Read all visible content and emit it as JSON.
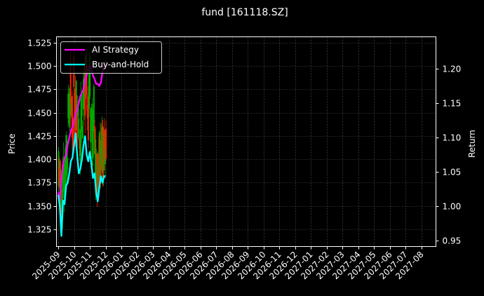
{
  "chart_data": {
    "type": "line",
    "title": "fund [161118.SZ]",
    "xlabel": "",
    "ylabel": "Price",
    "ylabel_right": "Return",
    "grid": true,
    "legend_position": "upper left",
    "ylim": [
      1.308,
      1.533
    ],
    "ylim_right": [
      0.942,
      1.248
    ],
    "yticks": [
      "1.325",
      "1.350",
      "1.375",
      "1.400",
      "1.425",
      "1.450",
      "1.475",
      "1.500",
      "1.525"
    ],
    "yticks_right": [
      "0.95",
      "1.00",
      "1.05",
      "1.10",
      "1.15",
      "1.20"
    ],
    "x_tick_labels": [
      "2025-09",
      "2025-10",
      "2025-11",
      "2025-12",
      "2026-01",
      "2026-02",
      "2026-03",
      "2026-04",
      "2026-05",
      "2026-06",
      "2026-07",
      "2026-08",
      "2026-09",
      "2026-10",
      "2026-11",
      "2026-12",
      "2027-01",
      "2027-02",
      "2027-03",
      "2027-04",
      "2027-05",
      "2027-06",
      "2027-07",
      "2027-08"
    ],
    "series": [
      {
        "name": "AI Strategy",
        "axis": "right",
        "color": "#ff00ff",
        "x_month_offset": [
          0.0,
          0.1,
          0.2,
          0.3,
          0.4,
          0.5,
          0.6,
          0.7,
          0.8,
          0.9,
          1.0,
          1.1,
          1.2,
          1.3,
          1.4,
          1.5,
          1.6,
          1.7,
          1.8,
          1.9,
          2.0,
          2.1,
          2.2,
          2.3,
          2.4,
          2.5,
          2.6,
          2.7,
          2.8,
          2.9,
          3.0
        ],
        "values": [
          1.02,
          1.01,
          1.04,
          1.06,
          1.07,
          1.075,
          1.09,
          1.1,
          1.11,
          1.115,
          1.125,
          1.135,
          1.14,
          1.15,
          1.16,
          1.165,
          1.17,
          1.185,
          1.19,
          1.2,
          1.205,
          1.2,
          1.19,
          1.185,
          1.178,
          1.178,
          1.175,
          1.18,
          1.195,
          1.205,
          1.21
        ]
      },
      {
        "name": "Buy-and-Hold",
        "axis": "left",
        "color": "#00ffff",
        "x_month_offset": [
          0.0,
          0.1,
          0.2,
          0.3,
          0.4,
          0.5,
          0.6,
          0.7,
          0.8,
          0.9,
          1.0,
          1.1,
          1.2,
          1.3,
          1.4,
          1.5,
          1.6,
          1.7,
          1.8,
          1.9,
          2.0,
          2.1,
          2.2,
          2.3,
          2.4,
          2.5,
          2.6,
          2.7,
          2.8,
          2.9,
          3.0
        ],
        "values": [
          1.362,
          1.35,
          1.318,
          1.356,
          1.352,
          1.372,
          1.375,
          1.385,
          1.398,
          1.402,
          1.415,
          1.428,
          1.405,
          1.385,
          1.39,
          1.4,
          1.415,
          1.425,
          1.405,
          1.398,
          1.408,
          1.395,
          1.38,
          1.385,
          1.365,
          1.355,
          1.37,
          1.382,
          1.375,
          1.382,
          1.382
        ]
      }
    ],
    "candles": {
      "description": "red/green OHLC price candles on left axis, Sep–Dec 2025",
      "up_color": "#ff2200",
      "down_color": "#00aa00",
      "price_range": [
        1.31,
        1.515
      ]
    }
  },
  "legend": {
    "items": [
      {
        "label": "AI Strategy",
        "color": "#ff00ff"
      },
      {
        "label": "Buy-and-Hold",
        "color": "#00ffff"
      }
    ]
  }
}
